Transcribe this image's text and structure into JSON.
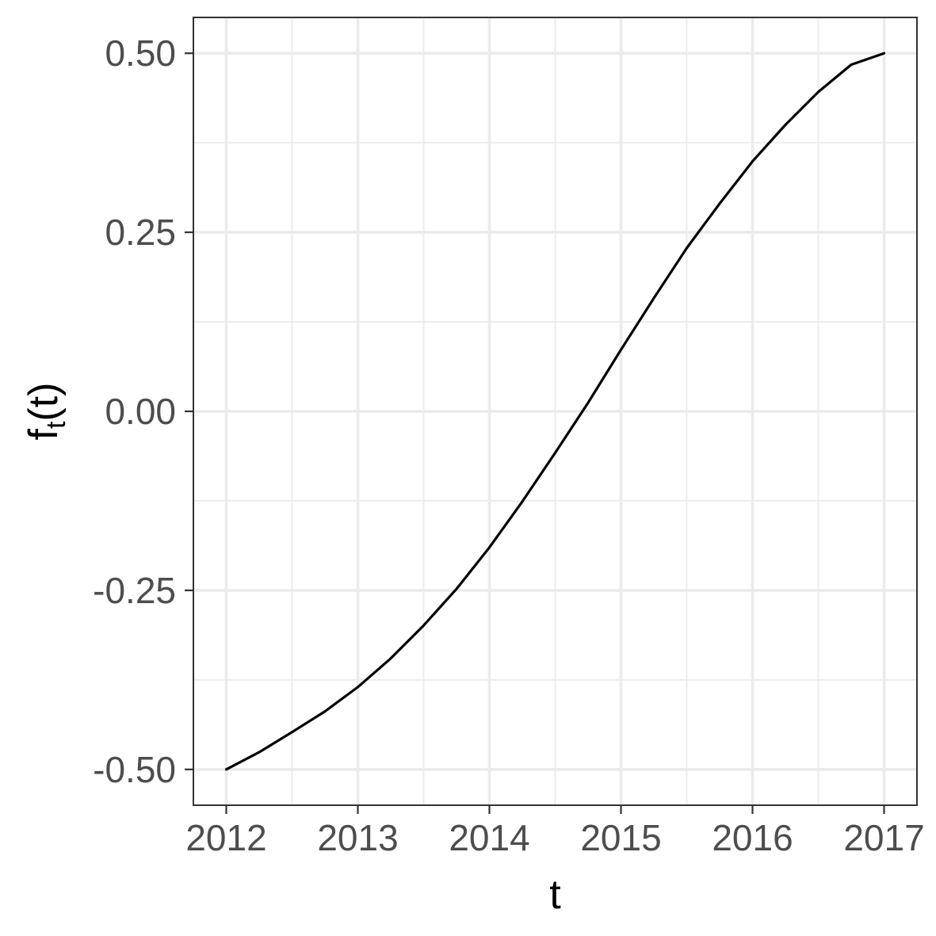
{
  "chart_data": {
    "type": "line",
    "title": "",
    "xlabel": "t",
    "ylabel_main": "f",
    "ylabel_subscript": "t",
    "ylabel_suffix": "(t)",
    "xlim": [
      2011.75,
      2017.25
    ],
    "ylim": [
      -0.55,
      0.55
    ],
    "grid": true,
    "legend": "none",
    "x_ticks": [
      2012,
      2013,
      2014,
      2015,
      2016,
      2017
    ],
    "x_tick_labels": [
      "2012",
      "2013",
      "2014",
      "2015",
      "2016",
      "2017"
    ],
    "x_minor_ticks": [
      2012.5,
      2013.5,
      2014.5,
      2015.5,
      2016.5
    ],
    "y_ticks": [
      -0.5,
      -0.25,
      0.0,
      0.25,
      0.5
    ],
    "y_tick_labels": [
      "-0.50",
      "-0.25",
      "0.00",
      "0.25",
      "0.50"
    ],
    "y_minor_ticks": [
      -0.375,
      -0.125,
      0.125,
      0.375
    ],
    "series": [
      {
        "color": "#000000",
        "x": [
          2012.0,
          2012.25,
          2012.5,
          2012.75,
          2013.0,
          2013.25,
          2013.5,
          2013.75,
          2014.0,
          2014.25,
          2014.5,
          2014.75,
          2015.0,
          2015.25,
          2015.5,
          2015.75,
          2016.0,
          2016.25,
          2016.5,
          2016.75,
          2017.0
        ],
        "y": [
          -0.5,
          -0.476,
          -0.448,
          -0.419,
          -0.385,
          -0.345,
          -0.299,
          -0.248,
          -0.19,
          -0.126,
          -0.058,
          0.012,
          0.086,
          0.158,
          0.228,
          0.29,
          0.349,
          0.4,
          0.446,
          0.484,
          0.5
        ]
      }
    ]
  }
}
